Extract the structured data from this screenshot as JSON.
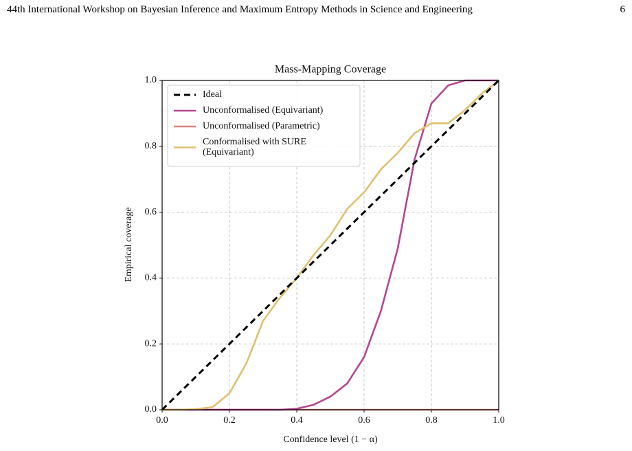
{
  "header": {
    "title": "44th International Workshop on Bayesian Inference and Maximum Entropy Methods in Science and Engineering",
    "page": "6"
  },
  "chart_data": {
    "type": "line",
    "title": "Mass-Mapping Coverage",
    "x_label": "Confidence level (1 − α)",
    "y_label": "Empirical coverage",
    "x": [
      0,
      0.05,
      0.1,
      0.15,
      0.2,
      0.25,
      0.3,
      0.35,
      0.4,
      0.45,
      0.5,
      0.55,
      0.6,
      0.65,
      0.7,
      0.75,
      0.8,
      0.85,
      0.9,
      0.95,
      1
    ],
    "series": [
      {
        "name": "Ideal",
        "color": "#000000",
        "dashed": true,
        "values": [
          0,
          0.05,
          0.1,
          0.15,
          0.2,
          0.25,
          0.3,
          0.35,
          0.4,
          0.45,
          0.5,
          0.55,
          0.6,
          0.65,
          0.7,
          0.75,
          0.8,
          0.85,
          0.9,
          0.95,
          1
        ]
      },
      {
        "name": "Unconformalised (Equivariant)",
        "color": "#b5468f",
        "values": [
          0,
          0,
          0,
          0,
          0,
          0,
          0,
          0,
          0.003,
          0.015,
          0.04,
          0.08,
          0.16,
          0.3,
          0.49,
          0.76,
          0.93,
          0.985,
          1,
          1,
          1
        ]
      },
      {
        "name": "Unconformalised (Parametric)",
        "color": "#d9837a",
        "values": [
          0,
          0,
          0,
          0,
          0,
          0,
          0,
          0,
          0,
          0,
          0,
          0,
          0,
          0,
          0,
          0,
          0,
          0,
          0,
          0,
          0
        ]
      },
      {
        "name": "Conformalised with SURE\n(Equivariant)",
        "color": "#e0bf6e",
        "values": [
          0,
          0,
          0.002,
          0.008,
          0.05,
          0.14,
          0.27,
          0.34,
          0.4,
          0.47,
          0.53,
          0.61,
          0.66,
          0.73,
          0.78,
          0.84,
          0.87,
          0.87,
          0.91,
          0.96,
          1
        ]
      }
    ],
    "xlim": [
      0,
      1
    ],
    "ylim": [
      0,
      1
    ],
    "xticks": [
      {
        "value": 0,
        "label": "0.0"
      },
      0.2,
      0.4,
      0.6,
      0.8,
      {
        "value": 1,
        "label": "1.0"
      }
    ],
    "yticks": [
      {
        "value": 0,
        "label": "0.0"
      },
      0.2,
      0.4,
      0.6,
      0.8,
      {
        "value": 1,
        "label": "1.0"
      }
    ],
    "grid": true,
    "legend": "upper left"
  }
}
